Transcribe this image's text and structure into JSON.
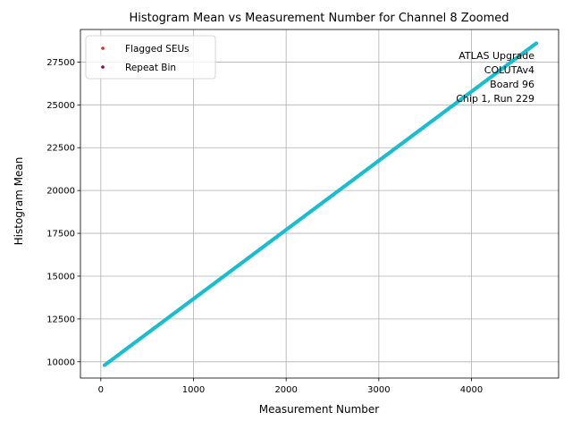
{
  "chart_data": {
    "type": "scatter",
    "title": "Histogram Mean vs Measurement Number for Channel 8 Zoomed",
    "xlabel": "Measurement Number",
    "ylabel": "Histogram Mean",
    "xlim": [
      -220,
      4940
    ],
    "ylim": [
      9050,
      29400
    ],
    "xticks": [
      0,
      1000,
      2000,
      3000,
      4000
    ],
    "xtick_labels": [
      "0",
      "1000",
      "2000",
      "3000",
      "4000"
    ],
    "yticks": [
      10000,
      12500,
      15000,
      17500,
      20000,
      22500,
      25000,
      27500
    ],
    "ytick_labels": [
      "10000",
      "12500",
      "15000",
      "17500",
      "20000",
      "22500",
      "25000",
      "27500"
    ],
    "grid": true,
    "legend_position": "top-left",
    "legend": [
      {
        "label": "Flagged SEUs",
        "color": "#d62728"
      },
      {
        "label": "Repeat Bin",
        "color": "#800060"
      }
    ],
    "annotation": [
      "ATLAS Upgrade",
      "COLUTAv4",
      "Board 96",
      "Chip 1, Run 229"
    ],
    "series": [
      {
        "color": "#17becf",
        "x_start": 40,
        "x_end": 4700,
        "y_start": 9800,
        "y_end": 28600
      }
    ]
  }
}
